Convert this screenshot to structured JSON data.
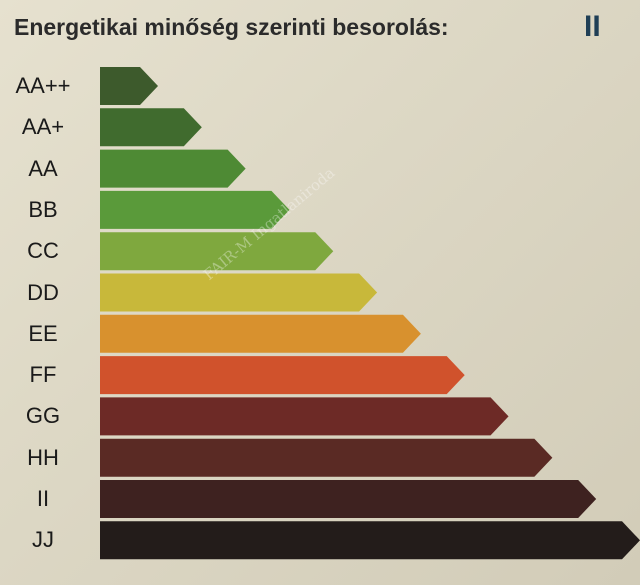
{
  "title": "Energetikai minőség szerinti besorolás:",
  "rating": "II",
  "chart_data": {
    "type": "bar",
    "orientation": "horizontal",
    "categories": [
      "AA++",
      "AA+",
      "AA",
      "BB",
      "CC",
      "DD",
      "EE",
      "FF",
      "GG",
      "HH",
      "II",
      "JJ"
    ],
    "values": [
      1,
      2,
      3,
      4,
      5,
      6,
      7,
      8,
      9,
      10,
      11,
      12
    ],
    "selected": "II",
    "colors": [
      "#3d5a2c",
      "#406b2e",
      "#4e8a34",
      "#5a9a3a",
      "#7fa83e",
      "#c8b83a",
      "#d8912e",
      "#d0522c",
      "#6d2a26",
      "#5a2a24",
      "#3e2220",
      "#231c1a"
    ],
    "title": "Energetikai minőség szerinti besorolás:",
    "xlabel": "",
    "ylabel": ""
  }
}
